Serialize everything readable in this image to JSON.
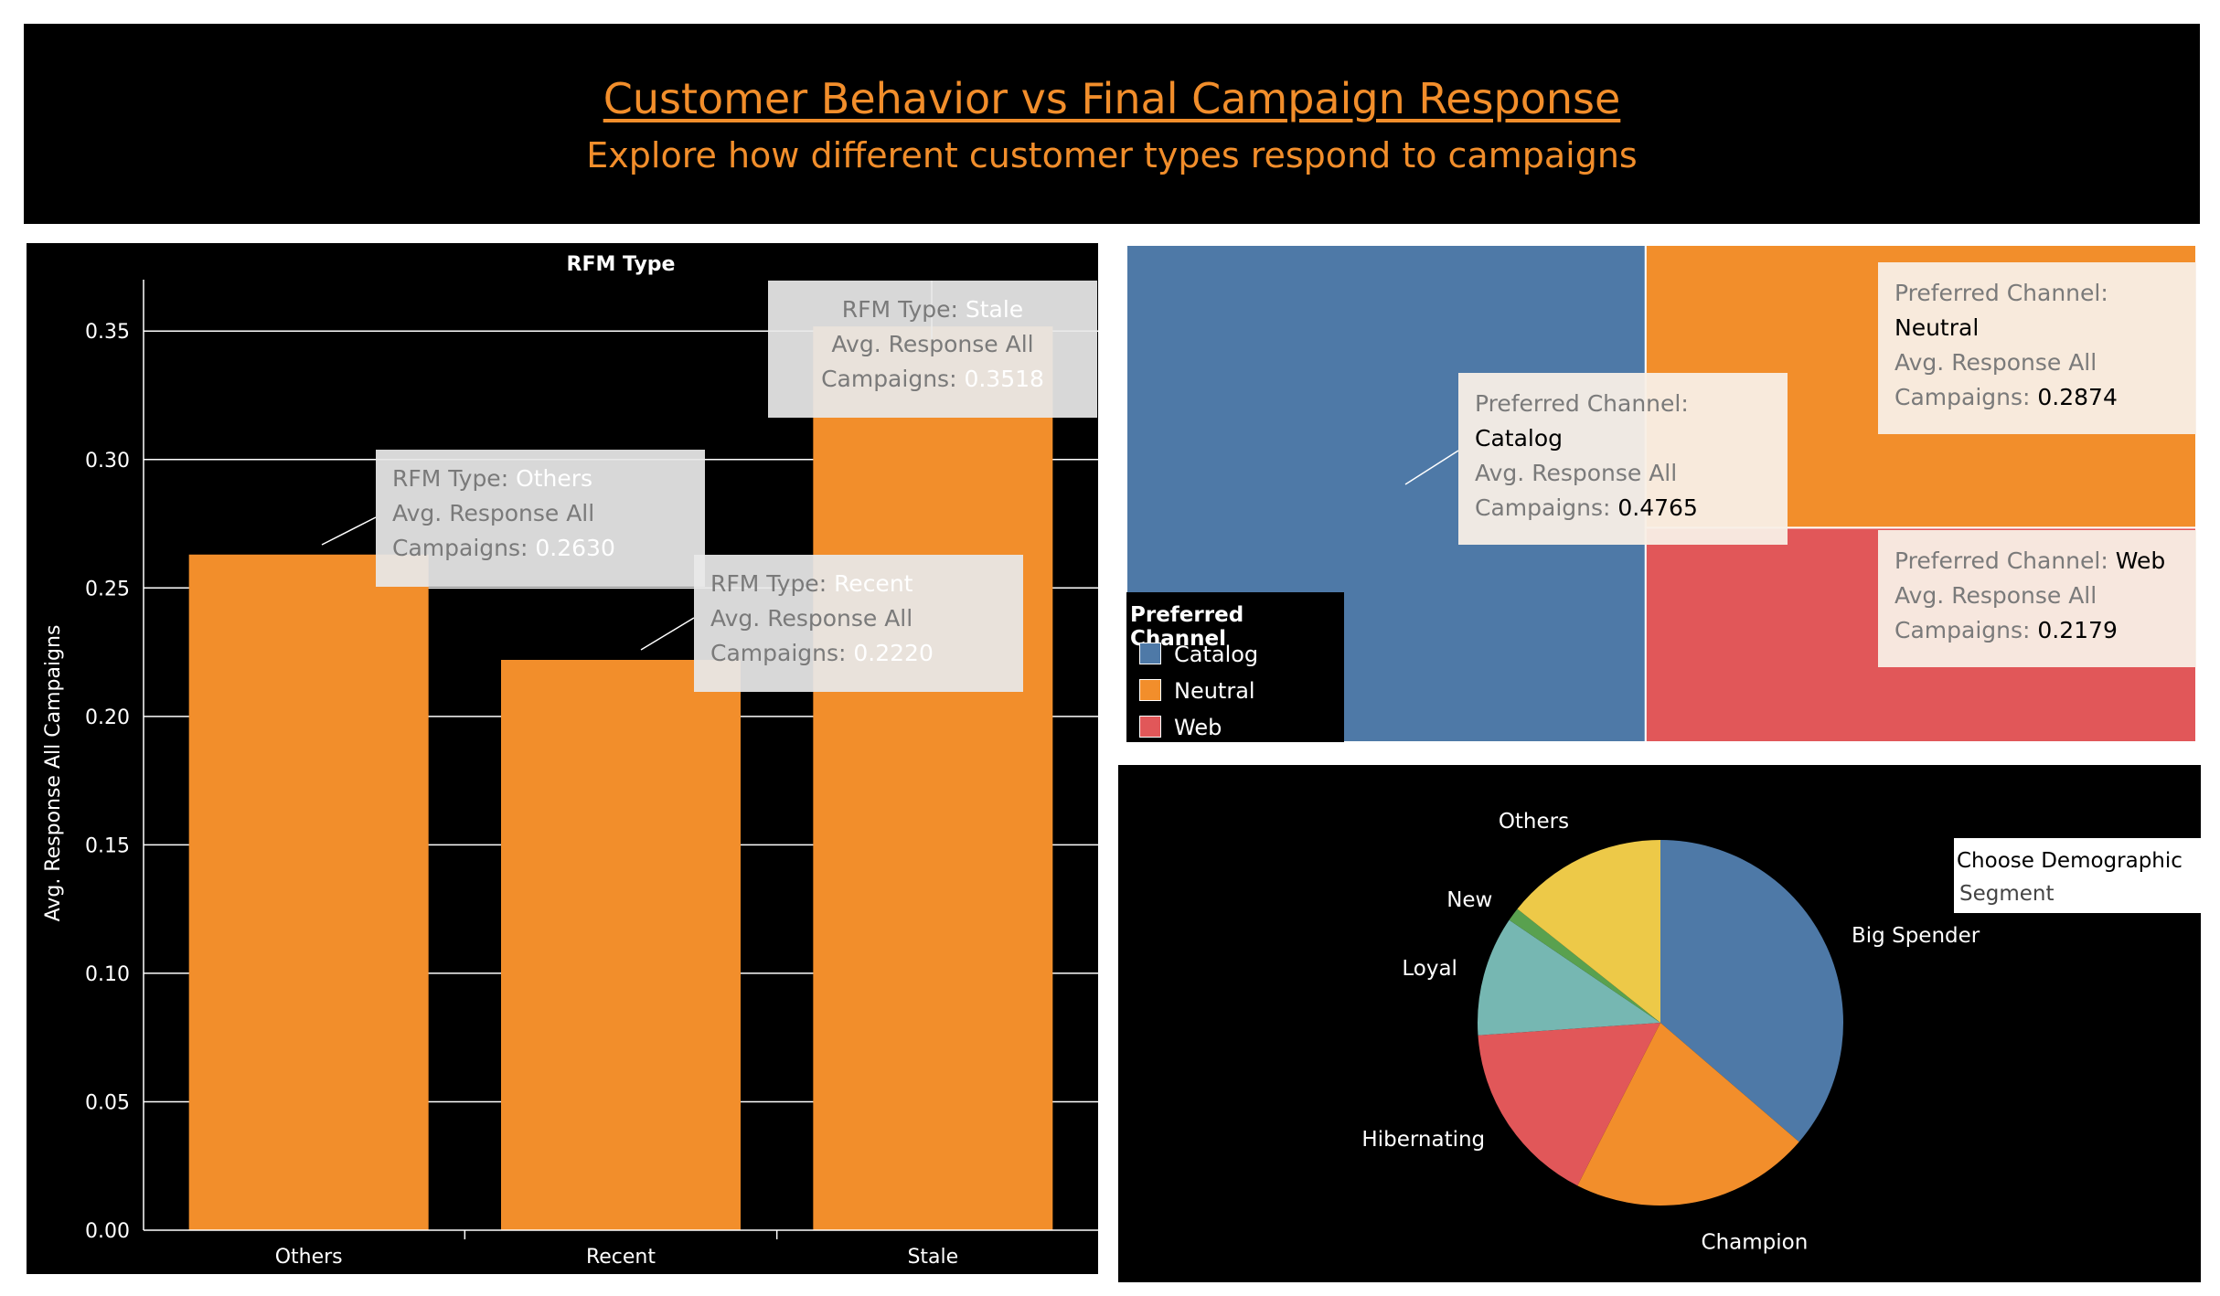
{
  "header": {
    "title": "Customer Behavior vs Final Campaign Response",
    "subtitle": "Explore how different customer types respond to campaigns"
  },
  "colors": {
    "orange": "#f28e2b",
    "blue": "#4e79a7",
    "red": "#e15759",
    "teal": "#76b7b2",
    "green": "#59a14f",
    "yellow": "#edc948",
    "background": "#000000"
  },
  "chart_data": [
    {
      "type": "bar",
      "title": "RFM Type",
      "xlabel": "",
      "ylabel": "Avg. Response All Campaigns",
      "categories": [
        "Others",
        "Recent",
        "Stale"
      ],
      "values": [
        0.263,
        0.222,
        0.3518
      ],
      "ylim": [
        0,
        0.37
      ],
      "yticks": [
        "0.00",
        "0.05",
        "0.10",
        "0.15",
        "0.20",
        "0.25",
        "0.30",
        "0.35"
      ],
      "grid": true,
      "tooltips": [
        {
          "k1": "RFM Type: ",
          "v1": "Others",
          "l2": "Avg. Response All",
          "k3": "Campaigns: ",
          "v3": "0.2630"
        },
        {
          "k1": "RFM Type: ",
          "v1": "Recent",
          "l2": "Avg. Response All",
          "k3": "Campaigns: ",
          "v3": "0.2220"
        },
        {
          "k1": "RFM Type: ",
          "v1": "Stale",
          "l2": "Avg. Response All",
          "k3": "Campaigns: ",
          "v3": "0.3518"
        }
      ]
    },
    {
      "type": "treemap",
      "categories": [
        "Catalog",
        "Neutral",
        "Web"
      ],
      "values": [
        0.4765,
        0.2874,
        0.2179
      ],
      "legend_title": "Preferred Channel",
      "legend_position": "bottom-left",
      "tooltips": [
        {
          "l1": "Preferred Channel:",
          "v1": "Catalog",
          "l2": "Avg. Response All",
          "k3": "Campaigns: ",
          "v3": "0.4765"
        },
        {
          "l1": "Preferred Channel:",
          "v1": "Neutral",
          "l2": "Avg. Response All",
          "k3": "Campaigns: ",
          "v3": "0.2874"
        },
        {
          "l1": "Preferred Channel: ",
          "v1": "Web",
          "l2": "Avg. Response All",
          "k3": "Campaigns: ",
          "v3": "0.2179"
        }
      ]
    },
    {
      "type": "pie",
      "categories": [
        "Big Spender",
        "Champion",
        "Hibernating",
        "Loyal",
        "New",
        "Others"
      ],
      "values": [
        0.363,
        0.212,
        0.164,
        0.106,
        0.012,
        0.143
      ],
      "filter_label_line1": "Choose Demographic",
      "filter_label_line2": "Segment"
    }
  ]
}
